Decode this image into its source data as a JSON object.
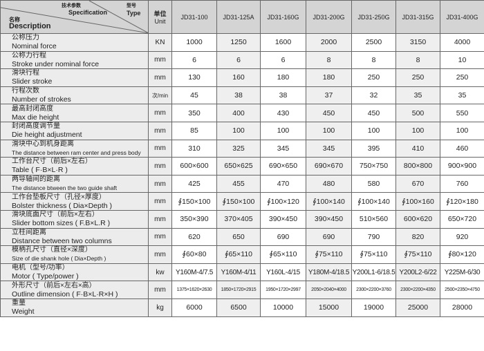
{
  "header": {
    "spec_zh": "技术参数",
    "spec_en": "Specification",
    "type_zh": "型号",
    "type_en": "Type",
    "desc_zh": "名称",
    "desc_en": "Description",
    "unit_zh": "单位",
    "unit_en": "Unit",
    "models": [
      "JD31-100",
      "JD31-125A",
      "JD31-160G",
      "JD31-200G",
      "JD31-250G",
      "JD31-315G",
      "JD31-400G"
    ]
  },
  "rows": [
    {
      "zh": "公称压力",
      "en": "Nominal force",
      "unit": "KN",
      "values": [
        "1000",
        "1250",
        "1600",
        "2000",
        "2500",
        "3150",
        "4000"
      ]
    },
    {
      "zh": "公称力行程",
      "en": "Stroke under nominal force",
      "unit": "mm",
      "values": [
        "6",
        "6",
        "6",
        "8",
        "8",
        "8",
        "10"
      ]
    },
    {
      "zh": "滑块行程",
      "en": "Slider stroke",
      "unit": "mm",
      "values": [
        "130",
        "160",
        "180",
        "180",
        "250",
        "250",
        "250"
      ]
    },
    {
      "zh": "行程次数",
      "en": "Number of strokes",
      "unit": "次/min",
      "values": [
        "45",
        "38",
        "38",
        "37",
        "32",
        "35",
        "35"
      ]
    },
    {
      "zh": "最高封闭高度",
      "en": "Max die height",
      "unit": "mm",
      "values": [
        "350",
        "400",
        "430",
        "450",
        "450",
        "500",
        "550"
      ]
    },
    {
      "zh": "封闭高度调节量",
      "en": "Die height adjustment",
      "unit": "mm",
      "values": [
        "85",
        "100",
        "100",
        "100",
        "100",
        "100",
        "100"
      ]
    },
    {
      "zh": "滑块中心到机身距离",
      "en": "The distance between ram center and press body",
      "unit": "mm",
      "values": [
        "310",
        "325",
        "345",
        "345",
        "395",
        "410",
        "460"
      ]
    },
    {
      "zh": "工作台尺寸（前后×左右）",
      "en": "Table ( F·B×L·R )",
      "unit": "mm",
      "values": [
        "600×600",
        "650×625",
        "690×650",
        "690×670",
        "750×750",
        "800×800",
        "900×900"
      ]
    },
    {
      "zh": "两导轴间的距离",
      "en": "The distance btween the two guide shaft",
      "unit": "mm",
      "values": [
        "425",
        "455",
        "470",
        "480",
        "580",
        "670",
        "760"
      ]
    },
    {
      "zh": "工作台垫板尺寸（孔径×厚度）",
      "en": "Bolster thickness ( Dia×Depth )",
      "unit": "mm",
      "values": [
        "∮150×100",
        "∮150×100",
        "∮100×120",
        "∮100×140",
        "∮100×140",
        "∮100×160",
        "∮120×180"
      ]
    },
    {
      "zh": "滑块底面尺寸（前后×左右）",
      "en": "Slider bottom sizes ( F.B×L.R )",
      "unit": "mm",
      "values": [
        "350×390",
        "370×405",
        "390×450",
        "390×450",
        "510×560",
        "600×620",
        "650×720"
      ]
    },
    {
      "zh": "立柱间距离",
      "en": "Distance between two columns",
      "unit": "mm",
      "values": [
        "620",
        "650",
        "690",
        "690",
        "790",
        "820",
        "920"
      ]
    },
    {
      "zh": "模柄孔尺寸（直径×深度）",
      "en": "Size of die shank hole ( Dia×Depth )",
      "unit": "mm",
      "values": [
        "∮60×80",
        "∮65×110",
        "∮65×110",
        "∮75×110",
        "∮75×110",
        "∮75×110",
        "∮80×120"
      ]
    },
    {
      "zh": "电机（型号/功率）",
      "en": "Motor ( Type/power )",
      "unit": "kw",
      "values": [
        "Y160M-4/7.5",
        "Y160M-4/11",
        "Y160L-4/15",
        "Y180M-4/18.5",
        "Y200L1-6/18.5",
        "Y200L2-6/22",
        "Y225M-6/30"
      ]
    },
    {
      "zh": "外形尺寸（前后×左右×高）",
      "en": "Outline dimension ( F·B×L·R×H )",
      "unit": "mm",
      "values": [
        "1375×1620×2630",
        "1850×1720×2915",
        "1950×1720×2997",
        "2050×2040×4000",
        "2300×2200×3760",
        "2300×2200×4350",
        "2500×2350×4750"
      ]
    },
    {
      "zh": "重量",
      "en": "Weight",
      "unit": "kg",
      "values": [
        "6000",
        "6500",
        "10000",
        "15000",
        "19000",
        "25000",
        "28000"
      ]
    }
  ]
}
